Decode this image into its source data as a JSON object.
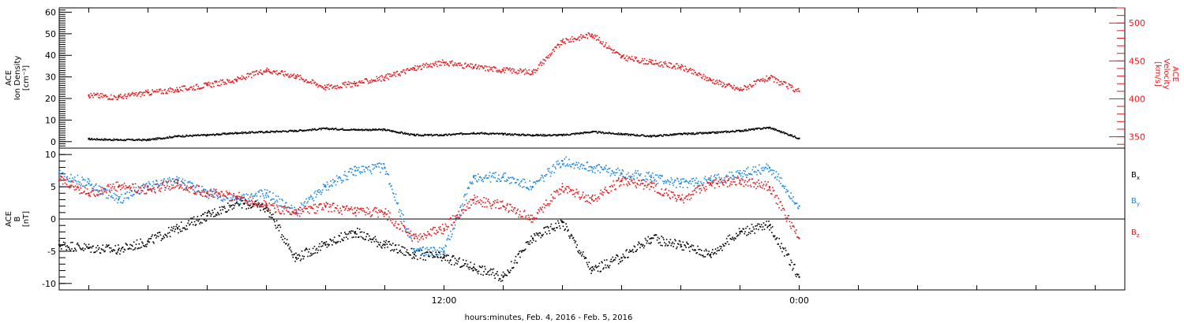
{
  "colors": {
    "black": "#000000",
    "red": "#e8191c",
    "blue": "#1e88e5",
    "axis": "#000000"
  },
  "xaxis": {
    "label": "hours:minutes, Feb.  4, 2016 - Feb.  5, 2016",
    "range_hours": [
      -1.0,
      35.0
    ],
    "tick_labels": [
      {
        "hour": 12,
        "text": "12:00"
      },
      {
        "hour": 24,
        "text": "0:00"
      }
    ]
  },
  "chart_data": [
    {
      "type": "scatter",
      "panel": "top",
      "left_axis": {
        "label_lines": [
          "ACE",
          "Ion Density",
          "[cm⁻³]"
        ],
        "range": [
          -3,
          62
        ],
        "ticks": [
          0,
          10,
          20,
          30,
          40,
          50,
          60
        ],
        "color": "#000000"
      },
      "right_axis": {
        "label_lines": [
          "ACE",
          "Velocity",
          "[km/s]"
        ],
        "range": [
          335,
          520
        ],
        "ticks": [
          350,
          400,
          450,
          500
        ],
        "color": "#e8191c"
      },
      "series": [
        {
          "axis": "left",
          "color": "#000000",
          "x": [
            0,
            1,
            2,
            3,
            4,
            5,
            6,
            7,
            8,
            9,
            10,
            11,
            12,
            13,
            14,
            15,
            16,
            17,
            18,
            19,
            20,
            21,
            22,
            23,
            24
          ],
          "y": [
            1.2,
            0.8,
            0.8,
            2.5,
            3.0,
            4.0,
            4.5,
            5.0,
            6.0,
            5.5,
            5.5,
            3.0,
            3.0,
            4.0,
            3.5,
            3.0,
            3.0,
            4.5,
            3.5,
            2.5,
            3.5,
            4.0,
            5.0,
            6.5,
            1.5
          ]
        },
        {
          "axis": "right",
          "color": "#e8191c",
          "x": [
            0,
            1,
            2,
            3,
            4,
            5,
            6,
            7,
            8,
            9,
            10,
            11,
            12,
            13,
            14,
            15,
            16,
            17,
            18,
            19,
            20,
            21,
            22,
            23,
            24
          ],
          "y": [
            405,
            402,
            408,
            412,
            418,
            425,
            438,
            430,
            415,
            420,
            428,
            440,
            448,
            442,
            438,
            435,
            475,
            485,
            455,
            448,
            442,
            425,
            412,
            428,
            410
          ]
        }
      ]
    },
    {
      "type": "scatter",
      "panel": "bottom",
      "left_axis": {
        "label_lines": [
          "ACE",
          "B",
          "[nT]"
        ],
        "range": [
          -11,
          11
        ],
        "ticks": [
          -10,
          -5,
          0,
          5,
          10
        ],
        "color": "#000000"
      },
      "zero_line": 0,
      "series": [
        {
          "name": "Bx",
          "color": "#000000",
          "x": [
            -1,
            0,
            1,
            2,
            3,
            4,
            5,
            6,
            7,
            8,
            9,
            10,
            11,
            12,
            13,
            14,
            15,
            16,
            17,
            18,
            19,
            20,
            21,
            22,
            23,
            24
          ],
          "y": [
            -4,
            -4.5,
            -4.8,
            -3.5,
            -1.5,
            0.5,
            2.5,
            1.8,
            -6,
            -4,
            -2,
            -4,
            -5.5,
            -6,
            -7.5,
            -9,
            -3,
            -0.5,
            -8,
            -6,
            -3,
            -4,
            -5.5,
            -2,
            -1,
            -9
          ]
        },
        {
          "name": "By",
          "color": "#1e88e5",
          "x": [
            -1,
            0,
            1,
            2,
            3,
            4,
            5,
            6,
            7,
            8,
            9,
            10,
            11,
            12,
            13,
            14,
            15,
            16,
            17,
            18,
            19,
            20,
            21,
            22,
            23,
            24
          ],
          "y": [
            7,
            5.5,
            3,
            5,
            6,
            4,
            3,
            4,
            1,
            5,
            7.5,
            8,
            -5,
            -5,
            6.5,
            6.5,
            5,
            9,
            8,
            7,
            6.5,
            5.5,
            6,
            7,
            8,
            2
          ]
        },
        {
          "name": "Bz",
          "color": "#e8191c",
          "x": [
            -1,
            0,
            1,
            2,
            3,
            4,
            5,
            6,
            7,
            8,
            9,
            10,
            11,
            12,
            13,
            14,
            15,
            16,
            17,
            18,
            19,
            20,
            21,
            22,
            23,
            24
          ],
          "y": [
            6,
            4,
            5,
            4.5,
            5.5,
            4,
            3.5,
            2,
            1,
            2,
            1,
            1,
            -3,
            -1.5,
            3,
            2,
            0,
            5,
            3,
            6,
            5,
            3,
            5.5,
            6,
            5,
            -3
          ]
        }
      ],
      "legend": [
        "Bx",
        "By",
        "Bz"
      ]
    }
  ]
}
